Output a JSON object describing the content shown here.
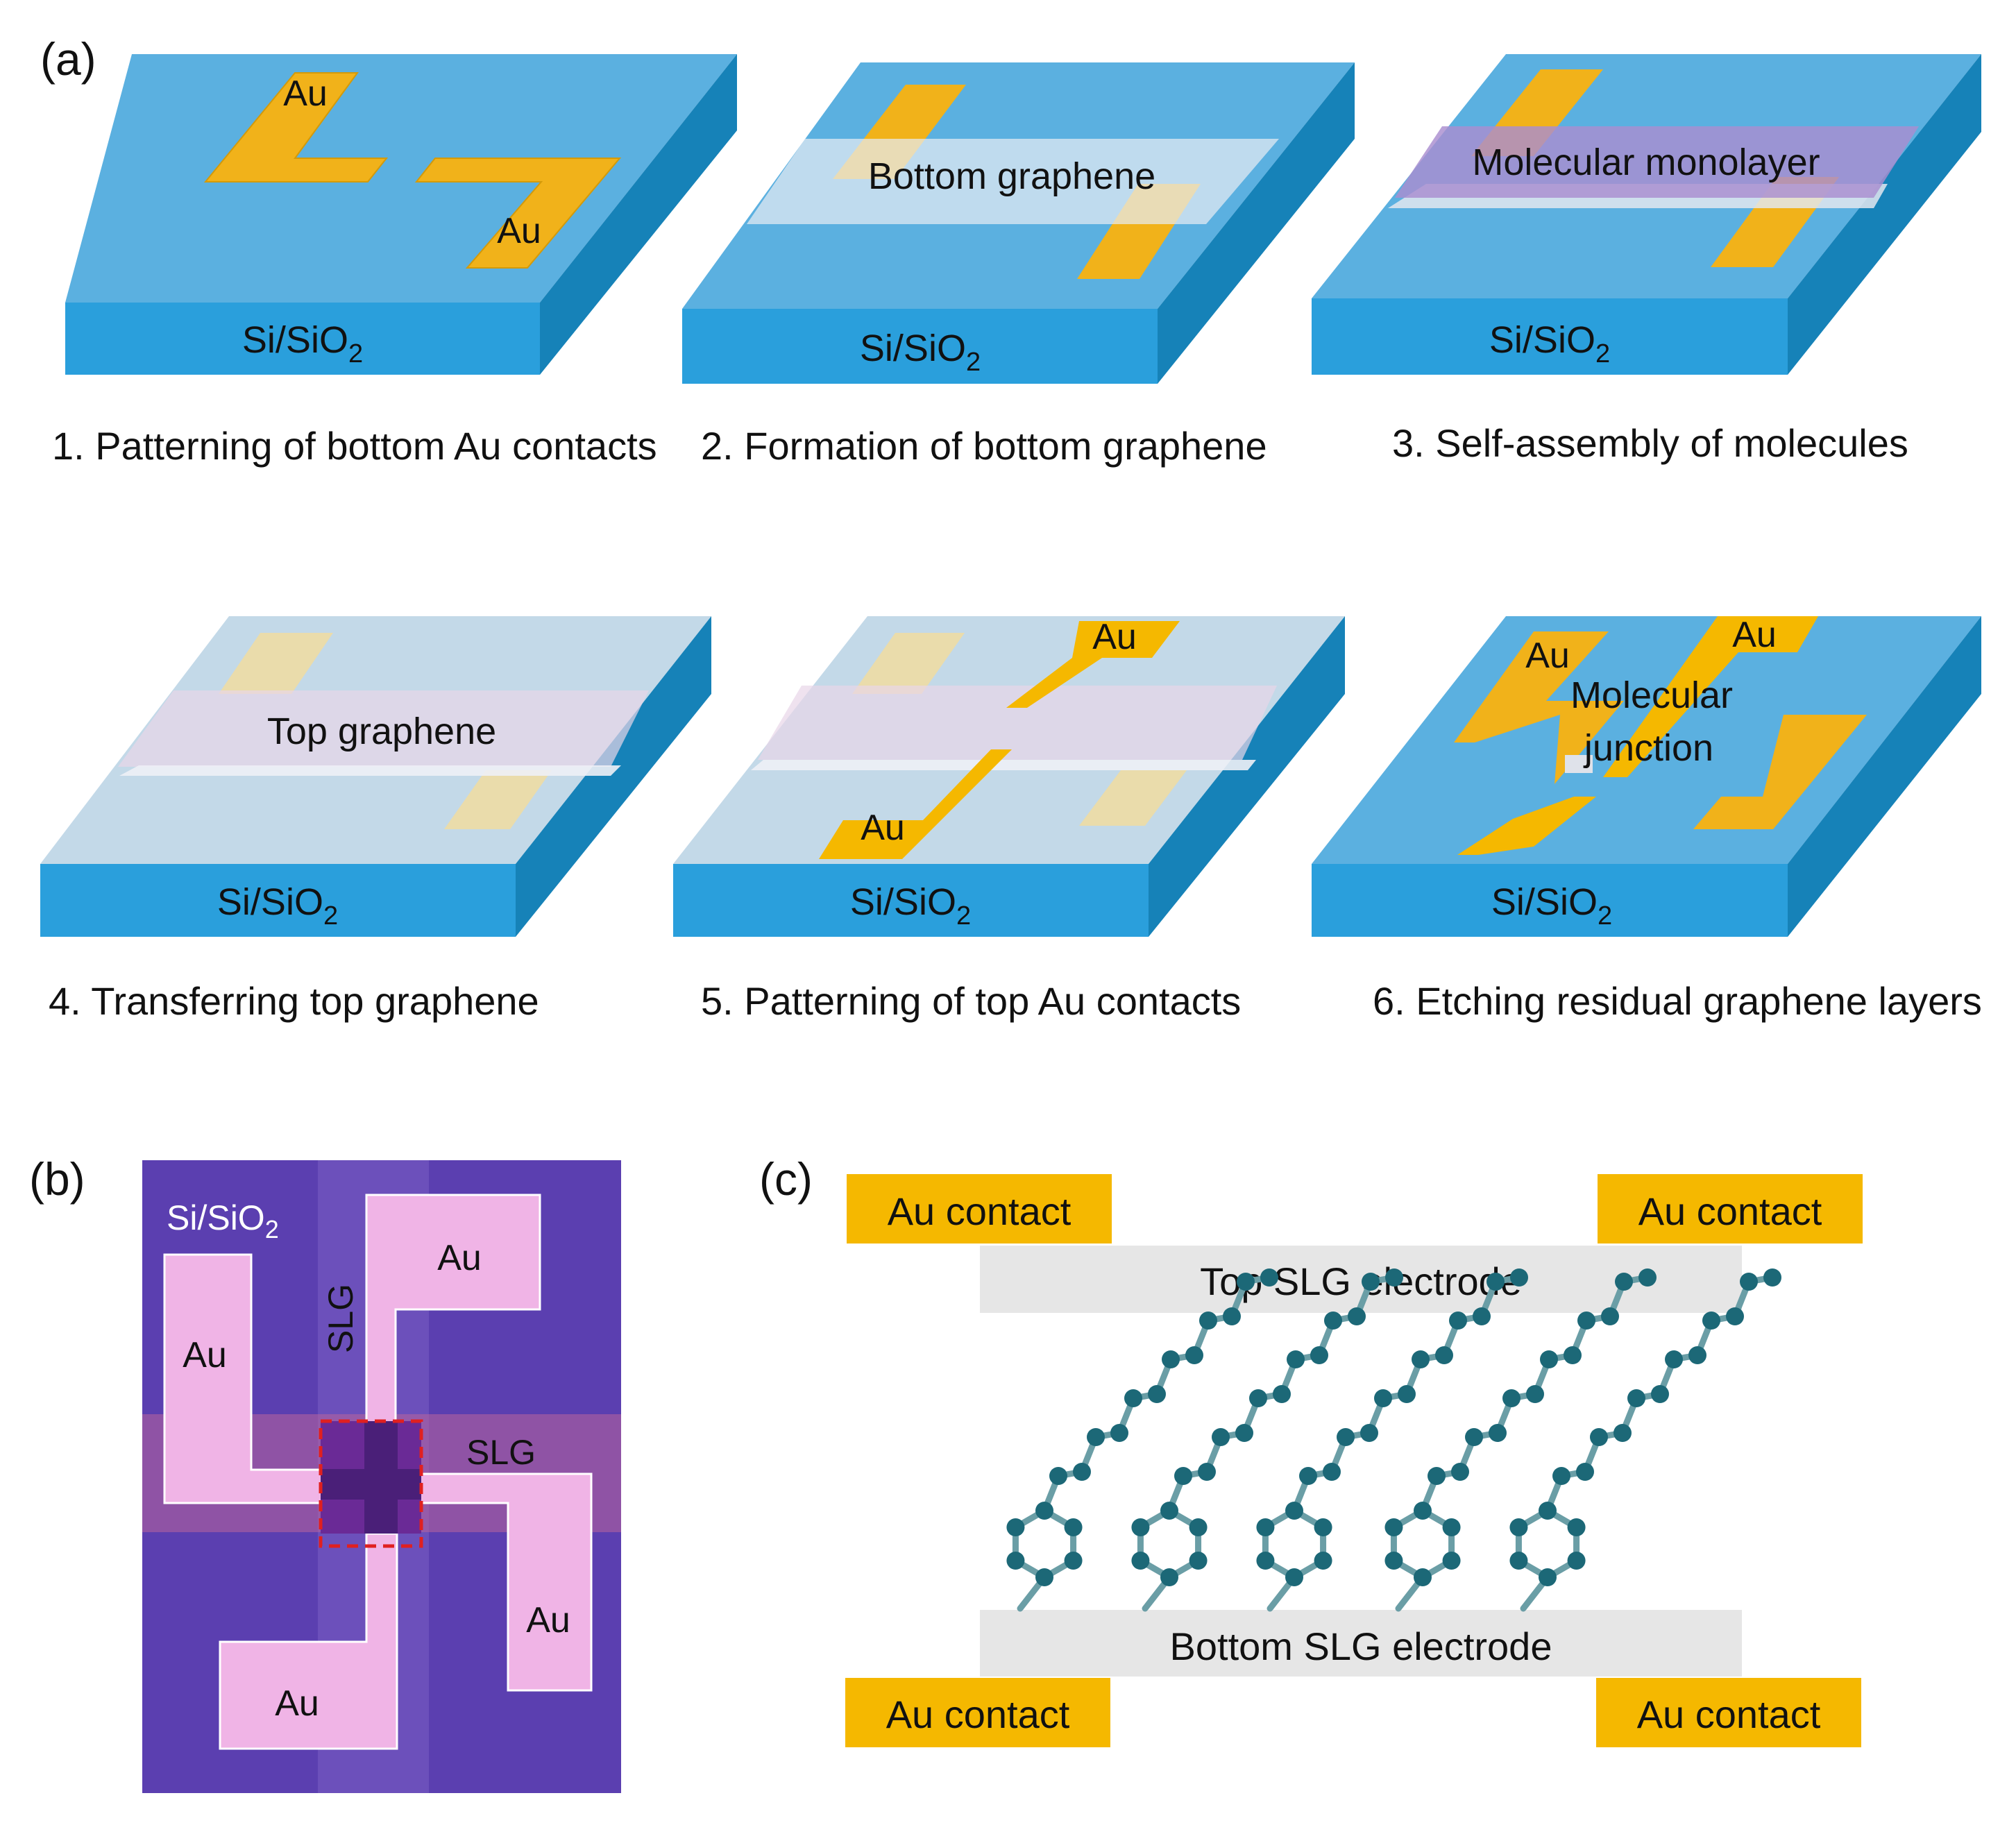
{
  "figure": {
    "panel_labels": {
      "a": "(a)",
      "b": "(b)",
      "c": "(c)"
    },
    "substrate_label_base": "Si/SiO",
    "substrate_label_sub": "2",
    "colors": {
      "substrate_top": "#5bb0e0",
      "substrate_front": "#2a9fdc",
      "substrate_side": "#1682b8",
      "gold": "#f5b800",
      "graphene": "#e3e7ef",
      "molecule_layer": "#a98dd0",
      "micrograph_bg": "#5b3fb0",
      "micrograph_pad": "#f0b4e6",
      "junction_box": "#e02020",
      "atom": "#1c6877",
      "bond": "#6a9ea6",
      "electrode": "#e6e6e6"
    },
    "steps": [
      {
        "caption": "1. Patterning of bottom Au contacts",
        "labels": {
          "au_1": "Au",
          "au_2": "Au"
        }
      },
      {
        "caption": "2. Formation of bottom graphene",
        "labels": {
          "layer": "Bottom graphene"
        }
      },
      {
        "caption": "3. Self-assembly of molecules",
        "labels": {
          "layer": "Molecular monolayer"
        }
      },
      {
        "caption": "4. Transferring top graphene",
        "labels": {
          "layer": "Top graphene"
        }
      },
      {
        "caption": "5. Patterning of top Au contacts",
        "labels": {
          "au_1": "Au",
          "au_2": "Au"
        }
      },
      {
        "caption": "6. Etching residual graphene layers",
        "labels": {
          "au_1": "Au",
          "au_2": "Au",
          "junction_1": "Molecular",
          "junction_2": "junction"
        }
      }
    ],
    "micrograph": {
      "au_top": "Au",
      "au_left": "Au",
      "au_right": "Au",
      "au_bottom": "Au",
      "slg_vertical": "SLG",
      "slg_horizontal": "SLG"
    },
    "schematic": {
      "au_contact_top_left": "Au contact",
      "au_contact_top_right": "Au contact",
      "au_contact_bottom_left": "Au contact",
      "au_contact_bottom_right": "Au contact",
      "top_electrode": "Top SLG electrode",
      "bottom_electrode": "Bottom SLG electrode"
    }
  }
}
